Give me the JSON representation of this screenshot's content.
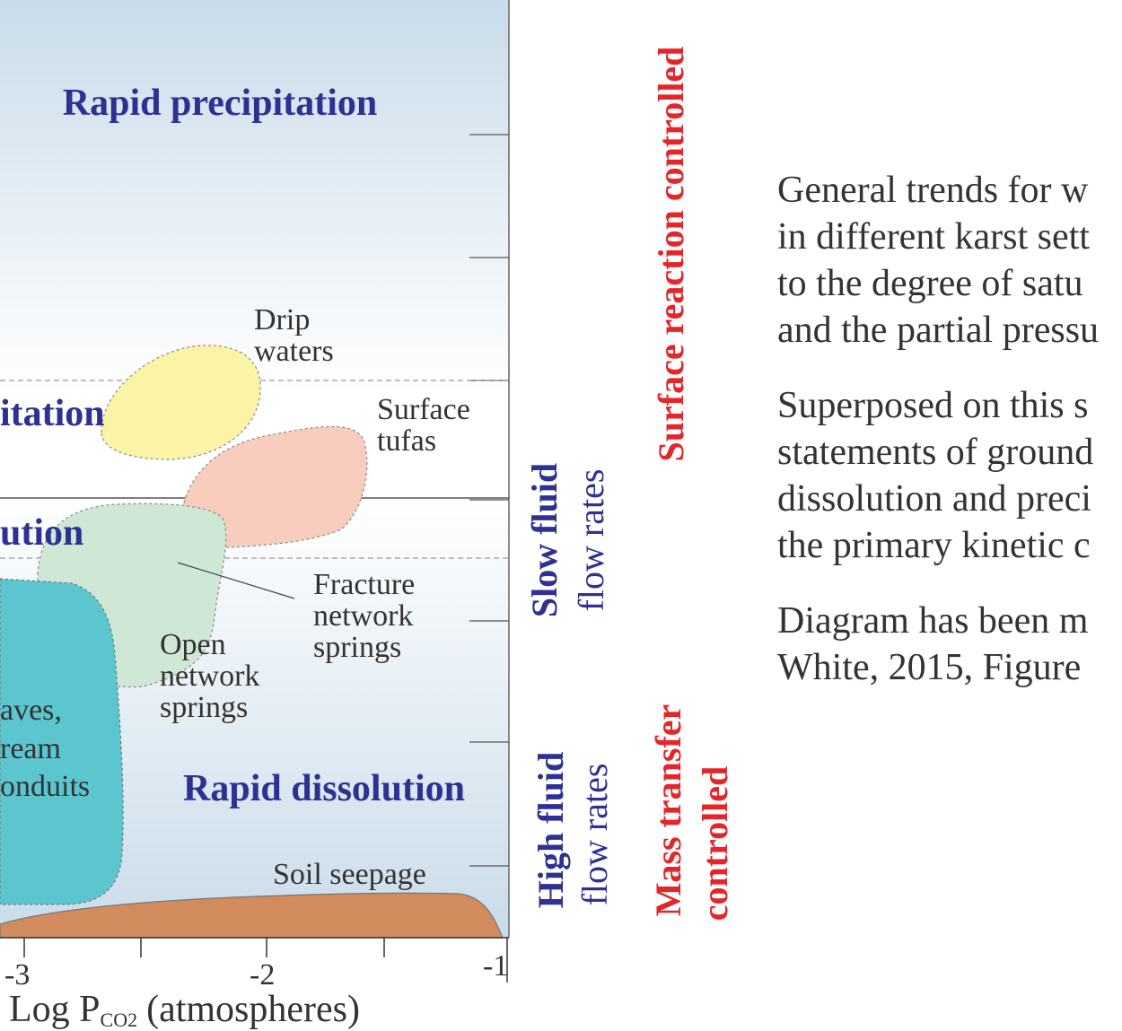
{
  "plot": {
    "x_axis": {
      "label": "Log P",
      "label_subscript": "CO2",
      "label_unit": "(atmospheres)",
      "ticks": [
        "-3",
        "-2",
        "-1"
      ]
    },
    "zones": {
      "rapid_precipitation": "Rapid precipitation",
      "precipitation_cut": "itation",
      "dissolution_cut": "ution",
      "rapid_dissolution": "Rapid dissolution"
    },
    "regions": {
      "drip_waters": [
        "Drip",
        "waters"
      ],
      "surface_tufas": [
        "Surface",
        "tufas"
      ],
      "fracture_springs": [
        "Fracture",
        "network",
        "springs"
      ],
      "open_springs": [
        "Open",
        "network",
        "springs"
      ],
      "caves": [
        "aves,",
        "ream",
        "onduits"
      ],
      "soil_seepage": "Soil seepage"
    },
    "colors": {
      "background_top": "#c9dcea",
      "drip_waters": "#fbf3a6",
      "surface_tufas": "#f8cdbd",
      "springs": "#cfe8d5",
      "caves": "#5bc6cf",
      "soil": "#d28b5d",
      "zone_text": "#2e3192",
      "control_text": "#e4262a"
    }
  },
  "side_labels": {
    "slow_fluid": [
      "Slow fluid",
      "flow rates"
    ],
    "high_fluid": [
      "High fluid",
      "flow rates"
    ],
    "surface_reaction": "Surface reaction controlled",
    "mass_transfer": [
      "Mass transfer",
      "controlled"
    ]
  },
  "caption": {
    "para1": [
      "General trends for w",
      "in different karst sett",
      "to the degree of satu",
      "and the partial pressu"
    ],
    "para2": [
      "Superposed on this s",
      "statements of ground",
      "dissolution and preci",
      "the primary kinetic c"
    ],
    "para3": [
      "Diagram has been m",
      "White, 2015, Figure"
    ]
  }
}
